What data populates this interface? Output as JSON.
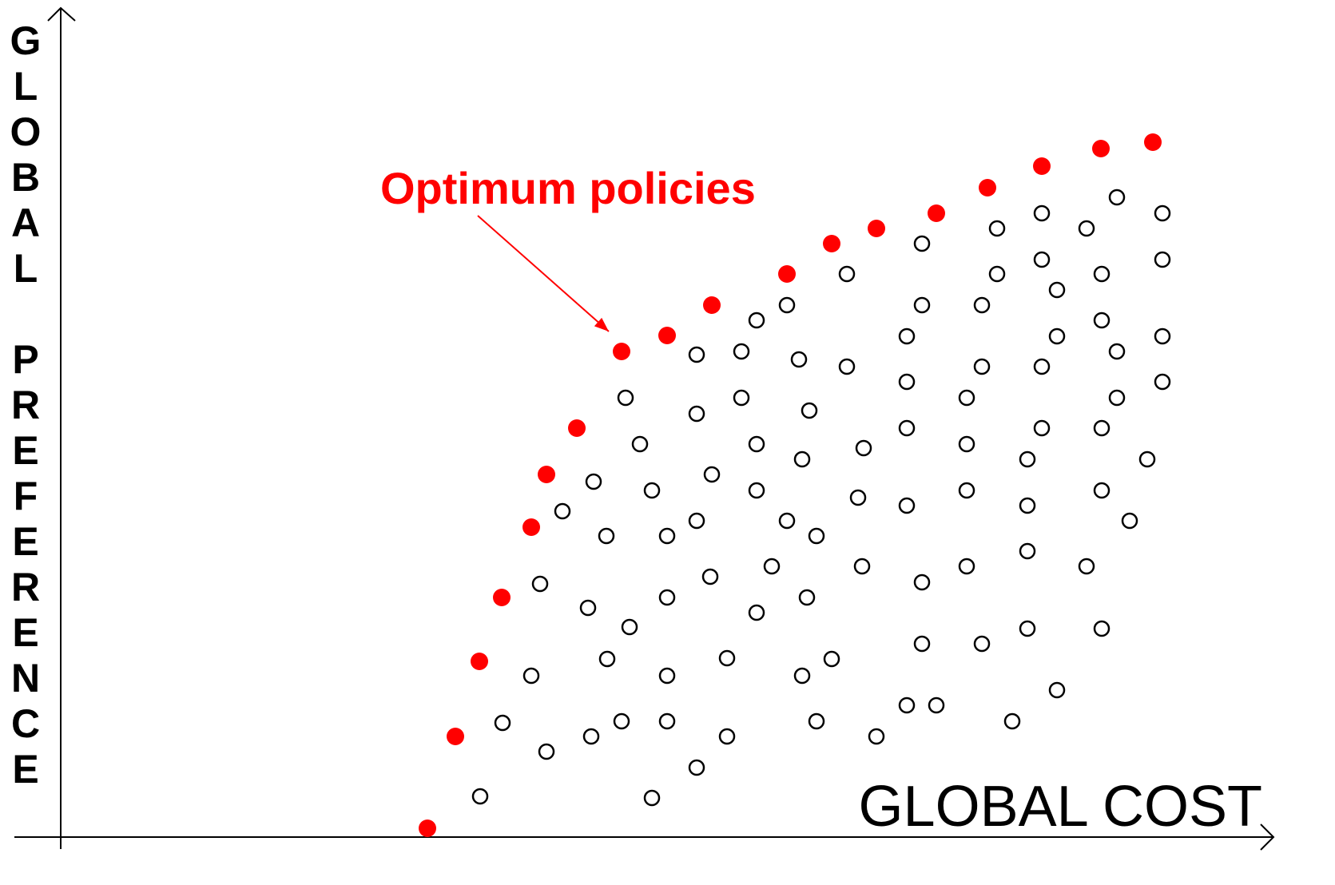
{
  "chart_data": {
    "type": "scatter",
    "xlabel": "GLOBAL COST",
    "ylabel": "GLOBAL PREFERENCE",
    "grid": false,
    "annotation": {
      "text": "Optimum policies",
      "color": "#ff0000"
    },
    "colors": {
      "optimum": "#ff0000",
      "other": "#000000",
      "axis": "#000000"
    },
    "series": [
      {
        "points": [
          [
            535,
            1037
          ],
          [
            570,
            922
          ],
          [
            600,
            828
          ],
          [
            628,
            748
          ],
          [
            665,
            660
          ],
          [
            684,
            594
          ],
          [
            722,
            536
          ],
          [
            778,
            440
          ],
          [
            835,
            420
          ],
          [
            891,
            382
          ],
          [
            985,
            343
          ],
          [
            1041,
            305
          ],
          [
            1097,
            286
          ],
          [
            1172,
            267
          ],
          [
            1236,
            235
          ],
          [
            1304,
            208
          ],
          [
            1378,
            186
          ],
          [
            1443,
            178
          ]
        ]
      },
      {
        "points": [
          [
            601,
            997
          ],
          [
            629,
            905
          ],
          [
            665,
            846
          ],
          [
            676,
            731
          ],
          [
            684,
            941
          ],
          [
            704,
            640
          ],
          [
            736,
            761
          ],
          [
            740,
            922
          ],
          [
            743,
            603
          ],
          [
            759,
            671
          ],
          [
            760,
            825
          ],
          [
            778,
            903
          ],
          [
            783,
            498
          ],
          [
            788,
            785
          ],
          [
            801,
            556
          ],
          [
            816,
            999
          ],
          [
            816,
            614
          ],
          [
            835,
            671
          ],
          [
            835,
            748
          ],
          [
            835,
            846
          ],
          [
            835,
            903
          ],
          [
            872,
            961
          ],
          [
            872,
            652
          ],
          [
            872,
            518
          ],
          [
            872,
            444
          ],
          [
            889,
            722
          ],
          [
            891,
            594
          ],
          [
            910,
            824
          ],
          [
            910,
            922
          ],
          [
            928,
            440
          ],
          [
            928,
            498
          ],
          [
            947,
            767
          ],
          [
            947,
            614
          ],
          [
            947,
            556
          ],
          [
            947,
            401
          ],
          [
            966,
            709
          ],
          [
            985,
            652
          ],
          [
            985,
            382
          ],
          [
            1000,
            450
          ],
          [
            1004,
            846
          ],
          [
            1004,
            575
          ],
          [
            1010,
            748
          ],
          [
            1013,
            514
          ],
          [
            1022,
            903
          ],
          [
            1022,
            671
          ],
          [
            1041,
            825
          ],
          [
            1060,
            459
          ],
          [
            1060,
            343
          ],
          [
            1074,
            623
          ],
          [
            1079,
            709
          ],
          [
            1081,
            561
          ],
          [
            1097,
            922
          ],
          [
            1135,
            883
          ],
          [
            1135,
            633
          ],
          [
            1135,
            536
          ],
          [
            1135,
            478
          ],
          [
            1135,
            421
          ],
          [
            1154,
            806
          ],
          [
            1154,
            729
          ],
          [
            1154,
            382
          ],
          [
            1154,
            305
          ],
          [
            1172,
            883
          ],
          [
            1210,
            709
          ],
          [
            1210,
            614
          ],
          [
            1210,
            556
          ],
          [
            1210,
            498
          ],
          [
            1229,
            806
          ],
          [
            1229,
            459
          ],
          [
            1229,
            382
          ],
          [
            1248,
            343
          ],
          [
            1248,
            286
          ],
          [
            1267,
            903
          ],
          [
            1286,
            787
          ],
          [
            1286,
            690
          ],
          [
            1286,
            633
          ],
          [
            1286,
            575
          ],
          [
            1304,
            536
          ],
          [
            1304,
            459
          ],
          [
            1304,
            325
          ],
          [
            1304,
            267
          ],
          [
            1323,
            864
          ],
          [
            1323,
            421
          ],
          [
            1323,
            363
          ],
          [
            1360,
            709
          ],
          [
            1360,
            286
          ],
          [
            1379,
            787
          ],
          [
            1379,
            614
          ],
          [
            1379,
            536
          ],
          [
            1379,
            401
          ],
          [
            1379,
            343
          ],
          [
            1398,
            498
          ],
          [
            1398,
            440
          ],
          [
            1398,
            247
          ],
          [
            1414,
            652
          ],
          [
            1436,
            575
          ],
          [
            1455,
            478
          ],
          [
            1455,
            421
          ],
          [
            1455,
            325
          ],
          [
            1455,
            267
          ]
        ]
      }
    ]
  }
}
